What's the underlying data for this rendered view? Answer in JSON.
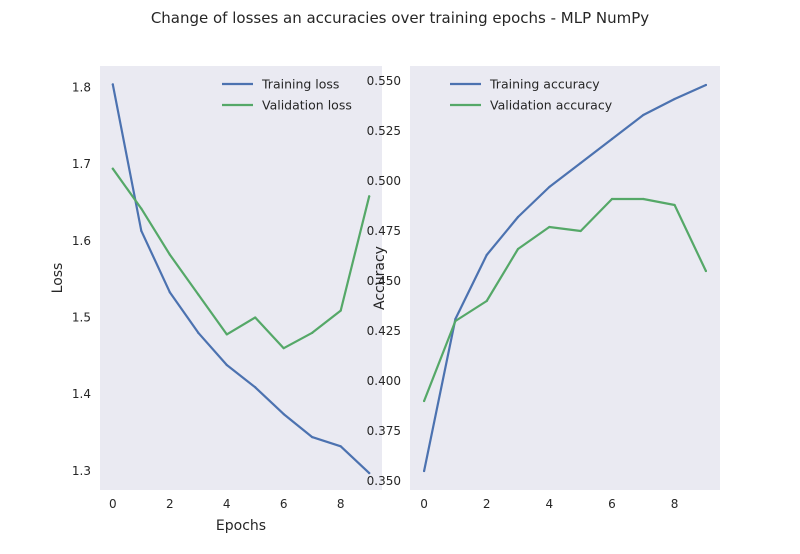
{
  "suptitle": "Change of losses an accuracies over training epochs - MLP NumPy",
  "colors": {
    "background": "#eaeaf2",
    "training": "#4c72b0",
    "validation": "#55a868"
  },
  "chart_data": [
    {
      "type": "line",
      "xlabel": "Epochs",
      "ylabel": "Loss",
      "xlim": [
        -0.45,
        9.45
      ],
      "ylim": [
        1.275,
        1.828
      ],
      "xticks": [
        0,
        2,
        4,
        6,
        8
      ],
      "xtick_labels": [
        "0",
        "2",
        "4",
        "6",
        "8"
      ],
      "yticks": [
        1.3,
        1.4,
        1.5,
        1.6,
        1.7,
        1.8
      ],
      "ytick_labels": [
        "1.3",
        "1.4",
        "1.5",
        "1.6",
        "1.7",
        "1.8"
      ],
      "grid": false,
      "legend_position": "upper right",
      "x": [
        0,
        1,
        2,
        3,
        4,
        5,
        6,
        7,
        8,
        9
      ],
      "series": [
        {
          "name": "Training loss",
          "color": "#4c72b0",
          "values": [
            1.804,
            1.613,
            1.533,
            1.48,
            1.438,
            1.409,
            1.374,
            1.344,
            1.332,
            1.297
          ]
        },
        {
          "name": "Validation loss",
          "color": "#55a868",
          "values": [
            1.694,
            1.642,
            1.582,
            1.53,
            1.478,
            1.5,
            1.46,
            1.48,
            1.509,
            1.658
          ]
        }
      ]
    },
    {
      "type": "line",
      "xlabel": "",
      "ylabel": "Accuracy",
      "xlim": [
        -0.45,
        9.45
      ],
      "ylim": [
        0.3455,
        0.5575
      ],
      "xticks": [
        0,
        2,
        4,
        6,
        8
      ],
      "xtick_labels": [
        "0",
        "2",
        "4",
        "6",
        "8"
      ],
      "yticks": [
        0.35,
        0.375,
        0.4,
        0.425,
        0.45,
        0.475,
        0.5,
        0.525,
        0.55
      ],
      "ytick_labels": [
        "0.350",
        "0.375",
        "0.400",
        "0.425",
        "0.450",
        "0.475",
        "0.500",
        "0.525",
        "0.550"
      ],
      "grid": false,
      "legend_position": "upper left",
      "x": [
        0,
        1,
        2,
        3,
        4,
        5,
        6,
        7,
        8,
        9
      ],
      "series": [
        {
          "name": "Training accuracy",
          "color": "#4c72b0",
          "values": [
            0.355,
            0.431,
            0.463,
            0.482,
            0.497,
            0.509,
            0.521,
            0.533,
            0.541,
            0.548
          ]
        },
        {
          "name": "Validation accuracy",
          "color": "#55a868",
          "values": [
            0.39,
            0.43,
            0.44,
            0.466,
            0.477,
            0.475,
            0.491,
            0.491,
            0.488,
            0.455
          ]
        }
      ]
    }
  ]
}
